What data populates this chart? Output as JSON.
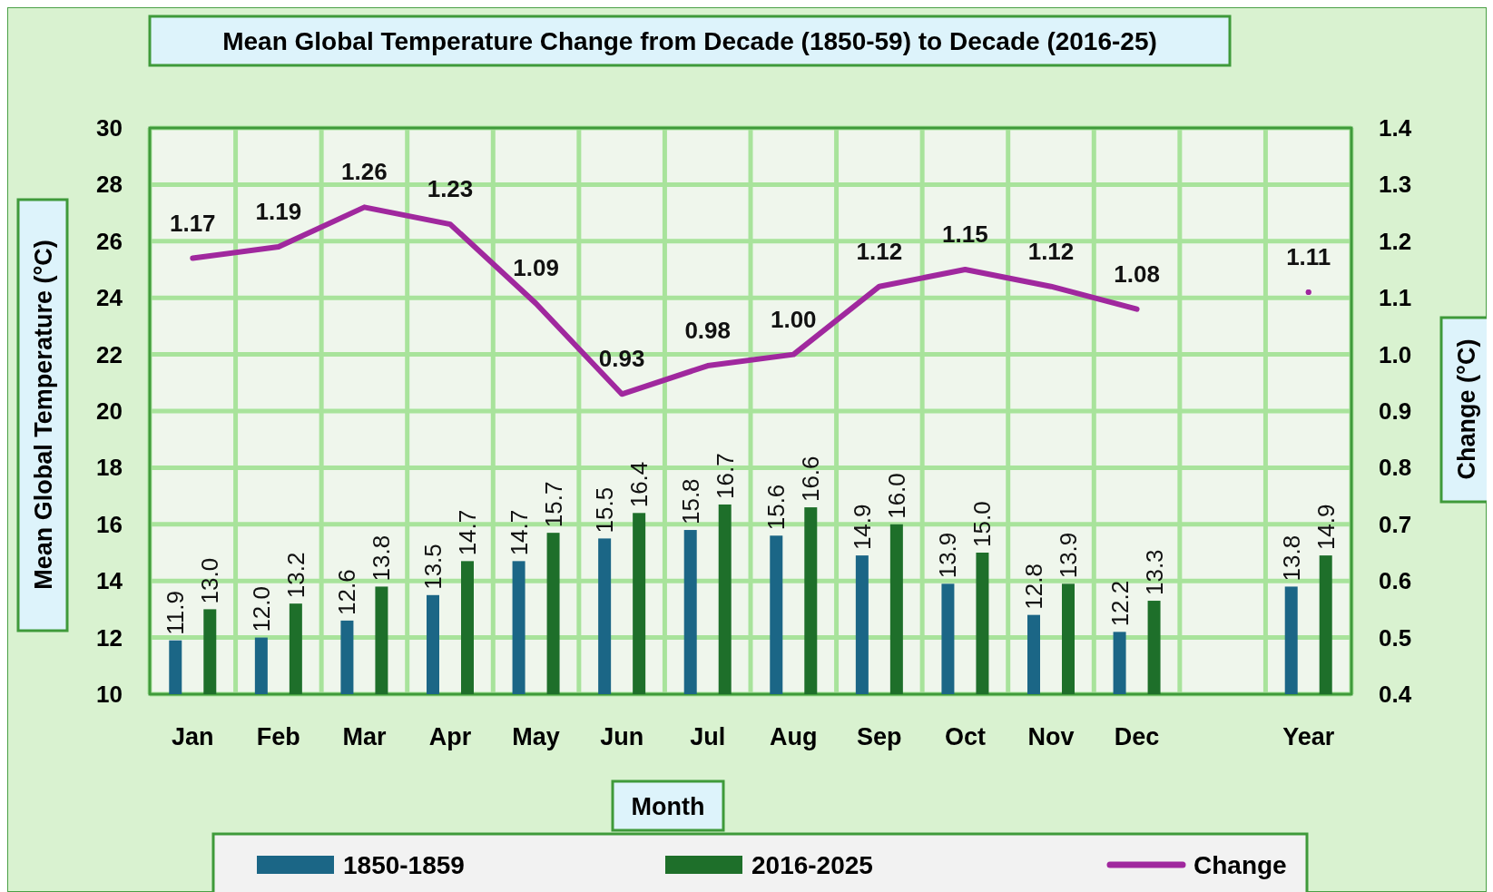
{
  "chart_data": {
    "type": "bar",
    "title": "Mean Global Temperature Change from Decade (1850-59) to Decade (2016-25)",
    "xlabel": "Month",
    "ylabel": "Mean Global Temperature (°C)",
    "y2label": "Change (°C)",
    "categories": [
      "Jan",
      "Feb",
      "Mar",
      "Apr",
      "May",
      "Jun",
      "Jul",
      "Aug",
      "Sep",
      "Oct",
      "Nov",
      "Dec",
      null,
      "Year"
    ],
    "series": [
      {
        "name": "1850-1859",
        "color": "#1b6686",
        "values": [
          11.9,
          12.0,
          12.6,
          13.5,
          14.7,
          15.5,
          15.8,
          15.6,
          14.9,
          13.9,
          12.8,
          12.2,
          null,
          13.8
        ],
        "value_labels": [
          "11.9",
          "12.0",
          "12.6",
          "13.5",
          "14.7",
          "15.5",
          "15.8",
          "15.6",
          "14.9",
          "13.9",
          "12.8",
          "12.2",
          null,
          "13.8"
        ]
      },
      {
        "name": "2016-2025",
        "color": "#1e6f2a",
        "values": [
          13.0,
          13.2,
          13.8,
          14.7,
          15.7,
          16.4,
          16.7,
          16.6,
          16.0,
          15.0,
          13.9,
          13.3,
          null,
          14.9
        ],
        "value_labels": [
          "13.0",
          "13.2",
          "13.8",
          "14.7",
          "15.7",
          "16.4",
          "16.7",
          "16.6",
          "16.0",
          "15.0",
          "13.9",
          "13.3",
          null,
          "14.9"
        ]
      },
      {
        "name": "Change",
        "type": "line",
        "axis": "y2",
        "color": "#a0289e",
        "values": [
          1.17,
          1.19,
          1.26,
          1.23,
          1.09,
          0.93,
          0.98,
          1.0,
          1.12,
          1.15,
          1.12,
          1.08,
          null,
          1.11
        ],
        "value_labels": [
          "1.17",
          "1.19",
          "1.26",
          "1.23",
          "1.09",
          "0.93",
          "0.98",
          "1.00",
          "1.12",
          "1.15",
          "1.12",
          "1.08",
          null,
          "1.11"
        ]
      }
    ],
    "ylim": [
      10,
      30
    ],
    "yticks": [
      10,
      12,
      14,
      16,
      18,
      20,
      22,
      24,
      26,
      28,
      30
    ],
    "y2lim": [
      0.4,
      1.4
    ],
    "y2ticks": [
      {
        "value": 0.4,
        "label": "0.4"
      },
      {
        "value": 0.5,
        "label": "0.5"
      },
      {
        "value": 0.6,
        "label": "0.6"
      },
      {
        "value": 0.7,
        "label": "0.7"
      },
      {
        "value": 0.8,
        "label": "0.8"
      },
      {
        "value": 0.9,
        "label": "0.9"
      },
      {
        "value": 1.0,
        "label": "1.0"
      },
      {
        "value": 1.1,
        "label": "1.1"
      },
      {
        "value": 1.2,
        "label": "1.2"
      },
      {
        "value": 1.3,
        "label": "1.3"
      },
      {
        "value": 1.4,
        "label": "1.4"
      }
    ],
    "grid": true,
    "legend": "bottom",
    "marker": "none",
    "line_style": "solid"
  }
}
